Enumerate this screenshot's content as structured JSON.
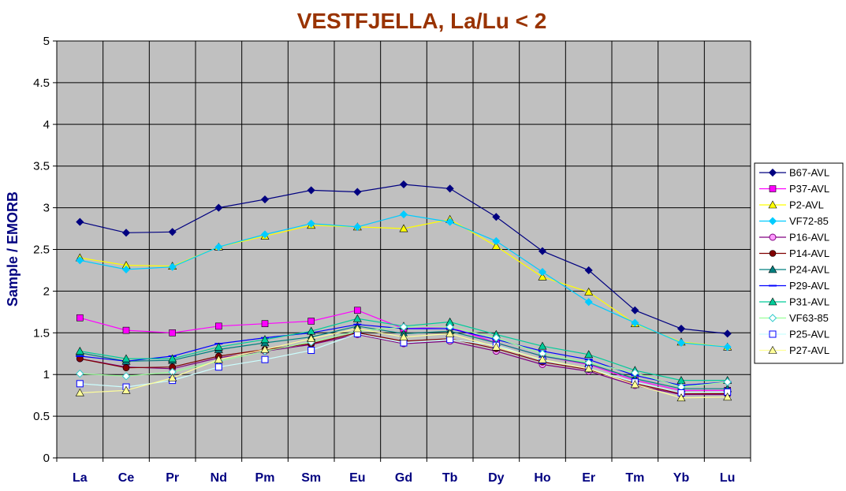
{
  "chart_data": {
    "type": "line",
    "title": "VESTFJELLA, La/Lu < 2",
    "xlabel": "",
    "ylabel": "Sample / EMORB",
    "ylim": [
      0,
      5
    ],
    "yticks": [
      "0",
      "0.5",
      "1",
      "1.5",
      "2",
      "2.5",
      "3",
      "3.5",
      "4",
      "4.5",
      "5"
    ],
    "categories": [
      "La",
      "Ce",
      "Pr",
      "Nd",
      "Pm",
      "Sm",
      "Eu",
      "Gd",
      "Tb",
      "Dy",
      "Ho",
      "Er",
      "Tm",
      "Yb",
      "Lu"
    ],
    "grid": true,
    "legend_position": "right",
    "plot_background": "#c0c0c0",
    "series": [
      {
        "name": "B67-AVL",
        "color": "#000080",
        "marker": "diamond",
        "values": [
          2.83,
          2.7,
          2.71,
          3.0,
          3.1,
          3.21,
          3.19,
          3.28,
          3.23,
          2.89,
          2.48,
          2.25,
          1.77,
          1.55,
          1.49
        ]
      },
      {
        "name": "P37-AVL",
        "color": "#ff00ff",
        "marker": "square",
        "values": [
          1.68,
          1.53,
          1.5,
          1.58,
          1.61,
          1.64,
          1.77,
          1.55,
          1.57,
          1.38,
          1.22,
          1.12,
          0.93,
          0.81,
          0.81
        ]
      },
      {
        "name": "P2-AVL",
        "color": "#ffff00",
        "marker": "triangle",
        "values": [
          2.4,
          2.31,
          2.3,
          2.53,
          2.66,
          2.79,
          2.77,
          2.75,
          2.86,
          2.54,
          2.17,
          1.99,
          1.61,
          1.39,
          1.33
        ]
      },
      {
        "name": "VF72-85",
        "color": "#00ccff",
        "marker": "diamond",
        "values": [
          2.37,
          2.26,
          2.29,
          2.53,
          2.68,
          2.81,
          2.77,
          2.92,
          2.83,
          2.6,
          2.23,
          1.87,
          1.62,
          1.38,
          1.33
        ]
      },
      {
        "name": "P16-AVL",
        "color": "#800080",
        "marker": "circle",
        "values": [
          1.19,
          1.09,
          1.07,
          1.2,
          1.28,
          1.36,
          1.48,
          1.37,
          1.4,
          1.28,
          1.12,
          1.04,
          0.87,
          0.76,
          0.76
        ]
      },
      {
        "name": "P14-AVL",
        "color": "#800000",
        "marker": "dot",
        "values": [
          1.19,
          1.08,
          1.09,
          1.22,
          1.3,
          1.37,
          1.5,
          1.4,
          1.43,
          1.31,
          1.15,
          1.06,
          0.89,
          0.77,
          0.77
        ]
      },
      {
        "name": "P24-AVL",
        "color": "#008080",
        "marker": "triangle",
        "values": [
          1.26,
          1.16,
          1.17,
          1.3,
          1.38,
          1.45,
          1.58,
          1.49,
          1.52,
          1.38,
          1.22,
          1.13,
          0.95,
          0.83,
          0.83
        ]
      },
      {
        "name": "P29-AVL",
        "color": "#0000ff",
        "marker": "dash",
        "values": [
          1.22,
          1.16,
          1.22,
          1.37,
          1.44,
          1.5,
          1.6,
          1.55,
          1.55,
          1.42,
          1.28,
          1.18,
          0.99,
          0.87,
          0.91
        ]
      },
      {
        "name": "P31-AVL",
        "color": "#00cc99",
        "marker": "triangle",
        "values": [
          1.28,
          1.19,
          1.19,
          1.33,
          1.42,
          1.52,
          1.67,
          1.58,
          1.63,
          1.48,
          1.34,
          1.24,
          1.05,
          0.93,
          0.93
        ]
      },
      {
        "name": "VF63-85",
        "color": "#99ff99",
        "marker": "open-diamond",
        "values": [
          1.01,
          0.98,
          1.03,
          1.16,
          1.28,
          1.39,
          1.52,
          1.57,
          1.57,
          1.44,
          1.25,
          1.14,
          1.02,
          0.85,
          0.91
        ]
      },
      {
        "name": "P25-AVL",
        "color": "#ccffff",
        "marker": "open-square",
        "values": [
          0.89,
          0.85,
          0.93,
          1.09,
          1.18,
          1.29,
          1.49,
          1.38,
          1.42,
          1.35,
          1.17,
          1.07,
          0.91,
          0.78,
          0.79
        ]
      },
      {
        "name": "P27-AVL",
        "color": "#ffff99",
        "marker": "triangle",
        "values": [
          0.78,
          0.81,
          0.96,
          1.18,
          1.3,
          1.43,
          1.55,
          1.45,
          1.49,
          1.33,
          1.18,
          1.07,
          0.88,
          0.72,
          0.73
        ]
      }
    ]
  }
}
